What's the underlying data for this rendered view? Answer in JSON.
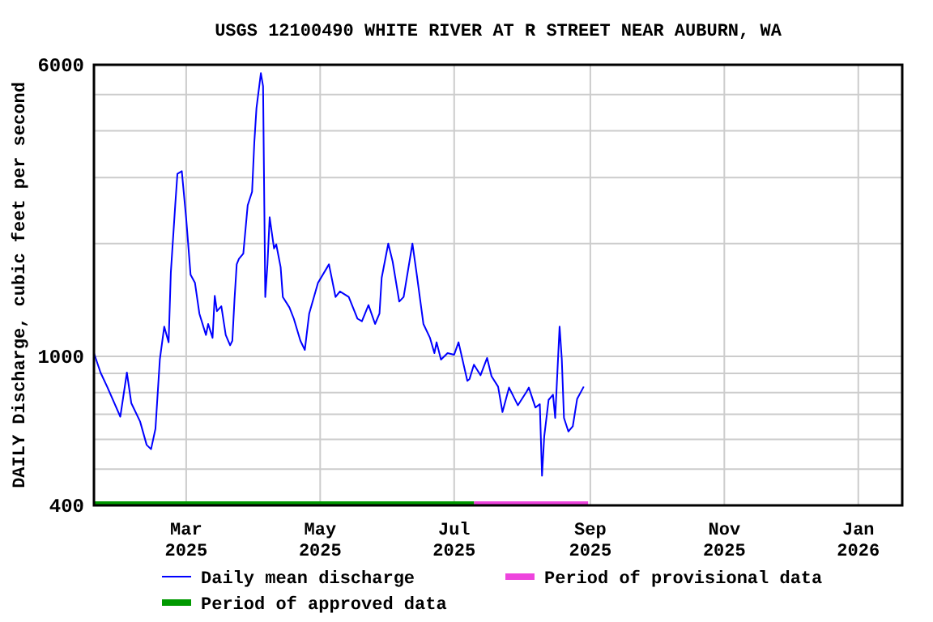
{
  "chart_data": {
    "type": "line",
    "title": "USGS 12100490 WHITE RIVER AT R STREET NEAR AUBURN, WA",
    "ylabel": "DAILY Discharge, cubic feet per second",
    "log": "y",
    "grid": true,
    "legend": "bottom",
    "line_style": "solid",
    "marker": "none",
    "xlim": [
      "2025-01-18",
      "2026-01-21"
    ],
    "xticks": [
      {
        "value": "2025-03-01",
        "label": "Mar\n2025"
      },
      {
        "value": "2025-05-01",
        "label": "May\n2025"
      },
      {
        "value": "2025-07-01",
        "label": "Jul\n2025"
      },
      {
        "value": "2025-09-01",
        "label": "Sep\n2025"
      },
      {
        "value": "2025-11-01",
        "label": "Nov\n2025"
      },
      {
        "value": "2026-01-01",
        "label": "Jan\n2026"
      }
    ],
    "ylim": [
      400,
      6000
    ],
    "yticks": [
      400,
      {
        "value": 500,
        "label": null
      },
      {
        "value": 600,
        "label": null
      },
      {
        "value": 700,
        "label": null
      },
      {
        "value": 800,
        "label": null
      },
      {
        "value": 900,
        "label": null
      },
      1000,
      {
        "value": 2000,
        "label": null
      },
      {
        "value": 3000,
        "label": null
      },
      {
        "value": 4000,
        "label": null
      },
      {
        "value": 5000,
        "label": null
      },
      6000
    ],
    "series": [
      {
        "name": "Daily mean discharge",
        "color": "#0000ff",
        "x": [
          "2025-01-18",
          "2025-01-21",
          "2025-01-24",
          "2025-01-30",
          "2025-02-02",
          "2025-02-04",
          "2025-02-08",
          "2025-02-11",
          "2025-02-13",
          "2025-02-15",
          "2025-02-17",
          "2025-02-19",
          "2025-02-21",
          "2025-02-22",
          "2025-02-24",
          "2025-02-25",
          "2025-02-27",
          "2025-03-01",
          "2025-03-03",
          "2025-03-05",
          "2025-03-07",
          "2025-03-10",
          "2025-03-11",
          "2025-03-13",
          "2025-03-14",
          "2025-03-15",
          "2025-03-17",
          "2025-03-19",
          "2025-03-21",
          "2025-03-22",
          "2025-03-23",
          "2025-03-24",
          "2025-03-25",
          "2025-03-27",
          "2025-03-29",
          "2025-03-31",
          "2025-04-01",
          "2025-04-02",
          "2025-04-04",
          "2025-04-05",
          "2025-04-06",
          "2025-04-07",
          "2025-04-08",
          "2025-04-10",
          "2025-04-11",
          "2025-04-13",
          "2025-04-14",
          "2025-04-17",
          "2025-04-19",
          "2025-04-22",
          "2025-04-24",
          "2025-04-26",
          "2025-04-30",
          "2025-05-05",
          "2025-05-08",
          "2025-05-10",
          "2025-05-14",
          "2025-05-18",
          "2025-05-20",
          "2025-05-23",
          "2025-05-26",
          "2025-05-28",
          "2025-05-29",
          "2025-06-01",
          "2025-06-03",
          "2025-06-06",
          "2025-06-08",
          "2025-06-12",
          "2025-06-14",
          "2025-06-17",
          "2025-06-20",
          "2025-06-22",
          "2025-06-23",
          "2025-06-25",
          "2025-06-28",
          "2025-07-01",
          "2025-07-03",
          "2025-07-07",
          "2025-07-08",
          "2025-07-10",
          "2025-07-13",
          "2025-07-16",
          "2025-07-18",
          "2025-07-21",
          "2025-07-23",
          "2025-07-26",
          "2025-07-30",
          "2025-08-03",
          "2025-08-04",
          "2025-08-07",
          "2025-08-09",
          "2025-08-10",
          "2025-08-11",
          "2025-08-13",
          "2025-08-15",
          "2025-08-16",
          "2025-08-18",
          "2025-08-19",
          "2025-08-20",
          "2025-08-22",
          "2025-08-24",
          "2025-08-26",
          "2025-08-29"
        ],
        "values": [
          1020,
          905,
          830,
          690,
          905,
          750,
          670,
          580,
          565,
          640,
          980,
          1200,
          1090,
          1670,
          2530,
          3070,
          3120,
          2330,
          1650,
          1570,
          1300,
          1140,
          1220,
          1120,
          1450,
          1320,
          1360,
          1140,
          1070,
          1100,
          1420,
          1760,
          1820,
          1880,
          2530,
          2750,
          3710,
          4600,
          5700,
          5260,
          1440,
          1760,
          2350,
          1940,
          1990,
          1730,
          1440,
          1350,
          1260,
          1100,
          1040,
          1300,
          1570,
          1760,
          1440,
          1490,
          1440,
          1260,
          1240,
          1370,
          1220,
          1300,
          1620,
          2000,
          1790,
          1400,
          1440,
          2000,
          1650,
          1220,
          1120,
          1020,
          1090,
          980,
          1020,
          1010,
          1090,
          860,
          870,
          950,
          890,
          990,
          885,
          830,
          710,
          825,
          740,
          805,
          825,
          730,
          745,
          480,
          610,
          765,
          790,
          685,
          1200,
          985,
          685,
          630,
          650,
          770,
          830
        ]
      },
      {
        "name": "Period of provisional data",
        "color": "#ee44dd",
        "x": [
          "2025-07-10",
          "2025-08-31"
        ],
        "values": [
          400,
          400
        ]
      },
      {
        "name": "Period of approved data",
        "color": "#009900",
        "x": [
          "2025-01-18",
          "2025-07-10"
        ],
        "values": [
          400,
          400
        ]
      }
    ]
  }
}
